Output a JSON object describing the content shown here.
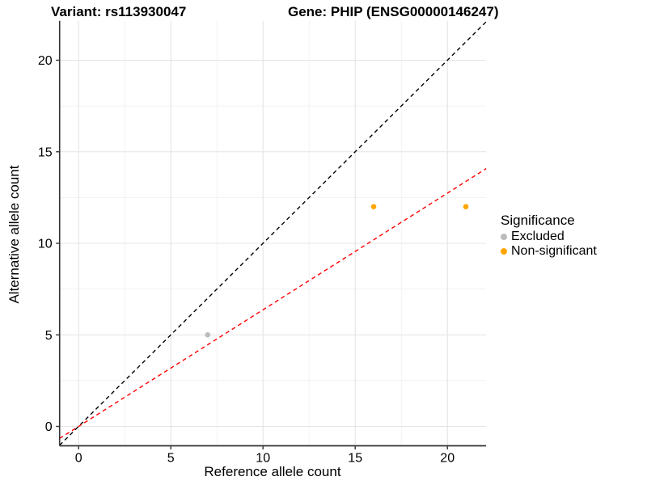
{
  "titles": {
    "left": "Variant: rs113930047",
    "right": "Gene: PHIP (ENSG00000146247)"
  },
  "chart_data": {
    "type": "scatter",
    "title": "Variant: rs113930047 — Gene: PHIP (ENSG00000146247)",
    "xlabel": "Reference allele count",
    "ylabel": "Alternative allele count",
    "xlim": [
      -1.03,
      22.1
    ],
    "ylim": [
      -1.06,
      22.15
    ],
    "xticks": [
      0,
      5,
      10,
      15,
      20
    ],
    "yticks": [
      0,
      5,
      10,
      15,
      20
    ],
    "minor_xticks": [
      2.5,
      7.5,
      12.5,
      17.5
    ],
    "minor_yticks": [
      2.5,
      7.5,
      12.5,
      17.5
    ],
    "grid": true,
    "legend_position": "right",
    "series": [
      {
        "name": "Excluded",
        "color": "#bcbcbc",
        "points": [
          [
            7,
            5
          ]
        ]
      },
      {
        "name": "Non-significant",
        "color": "#FFA500",
        "points": [
          [
            16,
            12
          ],
          [
            21,
            12
          ]
        ]
      }
    ],
    "ablines": [
      {
        "name": "identity-line",
        "slope": 1.0,
        "intercept": 0,
        "color": "#000000",
        "style": "dashed"
      },
      {
        "name": "regression-line",
        "slope": 0.637,
        "intercept": 0,
        "color": "#FF0000",
        "style": "dashed"
      }
    ],
    "legend": {
      "title": "Significance",
      "entries": [
        {
          "label": "Excluded",
          "color": "#bcbcbc"
        },
        {
          "label": "Non-significant",
          "color": "#FFA500"
        }
      ]
    },
    "colors": {
      "axis_line": "#333333",
      "major_grid": "#e4e4e4",
      "minor_grid": "#f1f1f1"
    }
  }
}
